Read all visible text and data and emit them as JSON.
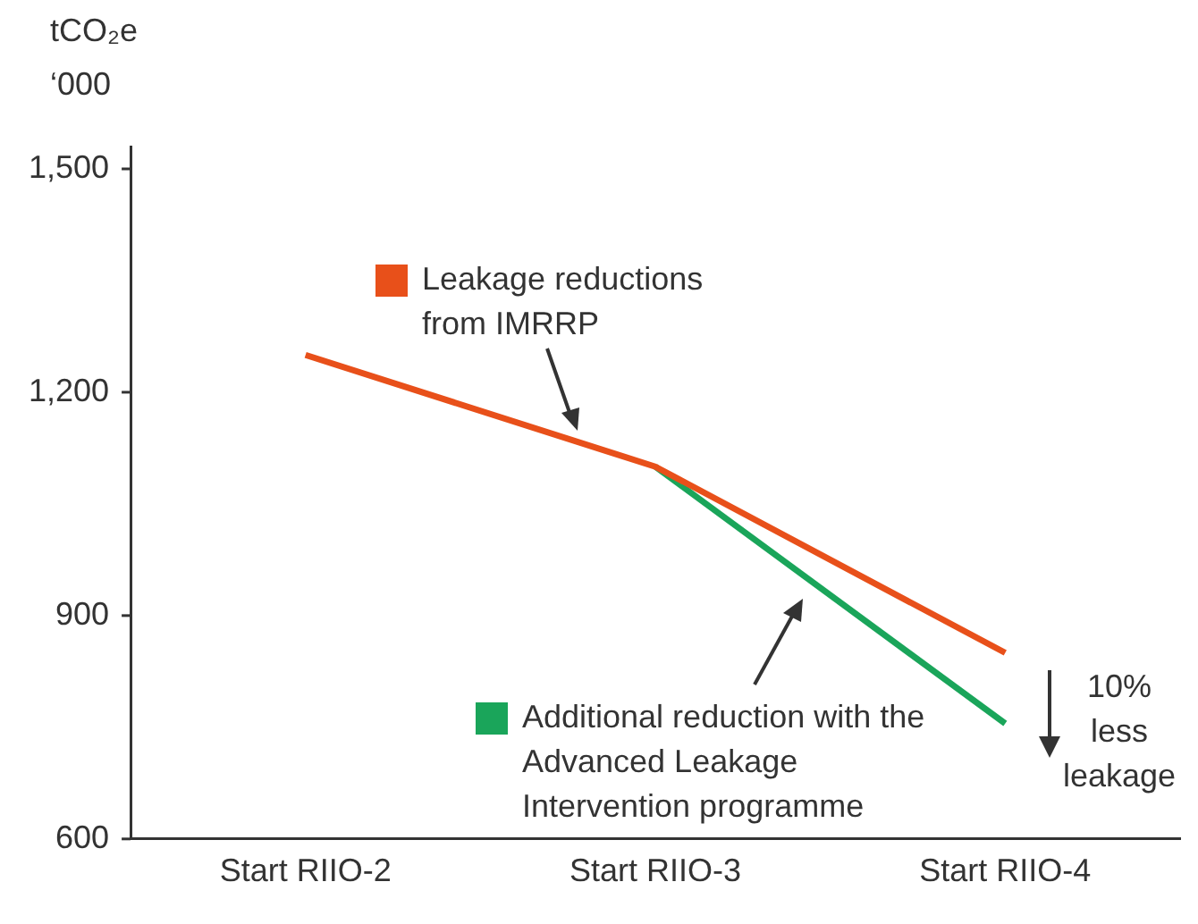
{
  "chart_data": {
    "type": "line",
    "ylabel": "tCO₂e\n‘000",
    "categories": [
      "Start RIIO-2",
      "Start RIIO-3",
      "Start RIIO-4"
    ],
    "ylim": [
      600,
      1530
    ],
    "yticks": [
      600,
      900,
      {
        "value": 1200,
        "label": "1,200"
      },
      {
        "value": 1500,
        "label": "1,500"
      }
    ],
    "grid": false,
    "legend": "bottom left",
    "marker": "none",
    "line_style": "solid",
    "series": [
      {
        "name": "Leakage reductions from IMRRP",
        "color": "#e8501a",
        "values": [
          1250,
          1100,
          850
        ]
      },
      {
        "name": "Additional reduction with the Advanced Leakage Intervention programme",
        "color": "#1aa55a",
        "values": [
          null,
          1100,
          755
        ]
      }
    ],
    "annotations": [
      "10% less leakage"
    ]
  }
}
